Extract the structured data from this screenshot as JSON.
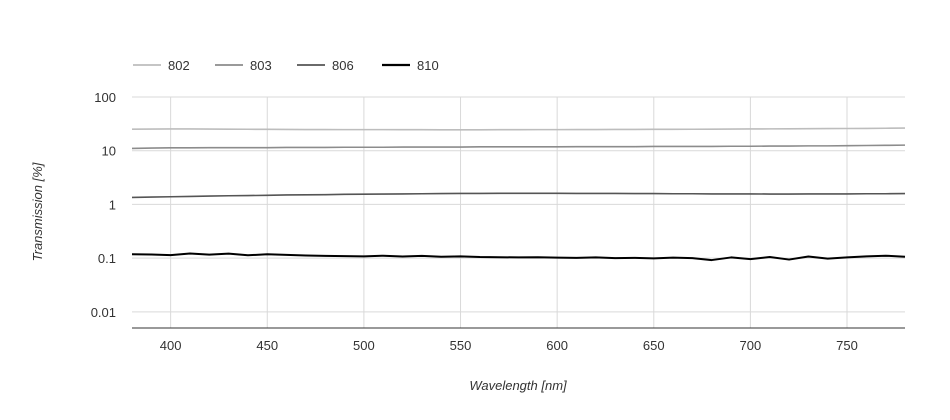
{
  "chart_data": {
    "type": "line",
    "xlabel": "Wavelength [nm]",
    "ylabel": "Transmission [%]",
    "xlim": [
      380,
      780
    ],
    "ylim": [
      0.005,
      100
    ],
    "yscale": "log",
    "grid": true,
    "legend_position": "top-left",
    "x_ticks": [
      400,
      450,
      500,
      550,
      600,
      650,
      700,
      750
    ],
    "x_tick_labels": [
      "400",
      "450",
      "500",
      "550",
      "600",
      "650",
      "700",
      "750"
    ],
    "y_ticks": [
      0.01,
      0.1,
      1,
      10,
      100
    ],
    "y_tick_labels": [
      "0.01",
      "0.1",
      "1",
      "10",
      "100"
    ],
    "x": [
      380,
      390,
      400,
      410,
      420,
      430,
      440,
      450,
      460,
      470,
      480,
      490,
      500,
      510,
      520,
      530,
      540,
      550,
      560,
      570,
      580,
      590,
      600,
      610,
      620,
      630,
      640,
      650,
      660,
      670,
      680,
      690,
      700,
      710,
      720,
      730,
      740,
      750,
      760,
      770,
      780
    ],
    "series": [
      {
        "name": "802",
        "color": "#bdbdbd",
        "values": [
          25.2,
          25.3,
          25.4,
          25.4,
          25.3,
          25.2,
          25.1,
          25.0,
          24.9,
          24.8,
          24.8,
          24.7,
          24.7,
          24.7,
          24.6,
          24.6,
          24.5,
          24.5,
          24.5,
          24.6,
          24.6,
          24.7,
          24.7,
          24.8,
          24.8,
          24.9,
          24.9,
          25.0,
          25.0,
          25.1,
          25.2,
          25.3,
          25.4,
          25.5,
          25.6,
          25.7,
          25.8,
          25.9,
          26.0,
          26.2,
          26.4
        ]
      },
      {
        "name": "803",
        "color": "#8c8c8c",
        "values": [
          11.0,
          11.2,
          11.3,
          11.3,
          11.4,
          11.4,
          11.4,
          11.4,
          11.5,
          11.5,
          11.5,
          11.6,
          11.6,
          11.6,
          11.7,
          11.7,
          11.7,
          11.7,
          11.8,
          11.8,
          11.8,
          11.8,
          11.8,
          11.9,
          11.9,
          11.9,
          11.9,
          12.0,
          12.0,
          12.0,
          12.0,
          12.1,
          12.1,
          12.2,
          12.2,
          12.3,
          12.3,
          12.4,
          12.5,
          12.6,
          12.7
        ]
      },
      {
        "name": "806",
        "color": "#555555",
        "values": [
          1.35,
          1.37,
          1.39,
          1.41,
          1.43,
          1.45,
          1.46,
          1.48,
          1.5,
          1.51,
          1.52,
          1.54,
          1.55,
          1.56,
          1.57,
          1.58,
          1.59,
          1.6,
          1.6,
          1.61,
          1.61,
          1.61,
          1.61,
          1.6,
          1.6,
          1.6,
          1.59,
          1.59,
          1.58,
          1.58,
          1.57,
          1.57,
          1.57,
          1.56,
          1.56,
          1.57,
          1.57,
          1.57,
          1.58,
          1.58,
          1.59
        ]
      },
      {
        "name": "810",
        "color": "#000000",
        "values": [
          0.118,
          0.117,
          0.114,
          0.122,
          0.116,
          0.121,
          0.113,
          0.118,
          0.115,
          0.112,
          0.11,
          0.109,
          0.108,
          0.111,
          0.107,
          0.11,
          0.106,
          0.108,
          0.105,
          0.104,
          0.103,
          0.104,
          0.102,
          0.101,
          0.103,
          0.1,
          0.101,
          0.099,
          0.102,
          0.1,
          0.092,
          0.103,
          0.096,
          0.105,
          0.094,
          0.107,
          0.098,
          0.103,
          0.108,
          0.111,
          0.106
        ]
      }
    ]
  }
}
